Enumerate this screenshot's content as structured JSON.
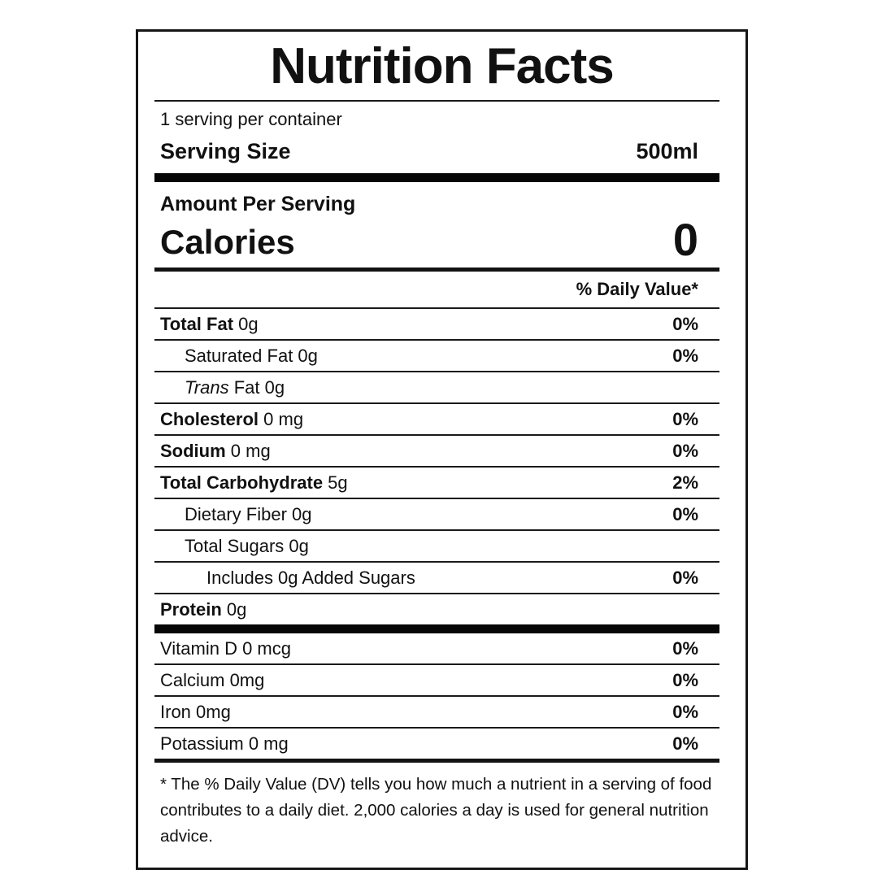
{
  "label": {
    "title": "Nutrition Facts",
    "servings_per_container": "1 serving per container",
    "serving_size": {
      "label": "Serving Size",
      "value": "500ml"
    },
    "amount_per_serving": "Amount Per Serving",
    "calories": {
      "label": "Calories",
      "value": "0"
    },
    "daily_value_header": "% Daily Value*",
    "nutrients": [
      {
        "bold": "Total Fat",
        "italic": "",
        "rest": " 0g",
        "dv": "0%"
      },
      {
        "bold": "",
        "italic": "",
        "rest": "Saturated Fat 0g",
        "dv": "0%"
      },
      {
        "bold": "",
        "italic": "Trans",
        "rest": " Fat 0g",
        "dv": ""
      },
      {
        "bold": "Cholesterol",
        "italic": "",
        "rest": " 0 mg",
        "dv": "0%"
      },
      {
        "bold": "Sodium",
        "italic": "",
        "rest": " 0 mg",
        "dv": "0%"
      },
      {
        "bold": "Total Carbohydrate",
        "italic": "",
        "rest": " 5g",
        "dv": "2%"
      },
      {
        "bold": "",
        "italic": "",
        "rest": "Dietary Fiber 0g",
        "dv": "0%"
      },
      {
        "bold": "",
        "italic": "",
        "rest": "Total Sugars 0g",
        "dv": ""
      },
      {
        "bold": "",
        "italic": "",
        "rest": "Includes 0g Added Sugars",
        "dv": "0%"
      },
      {
        "bold": "Protein",
        "italic": "",
        "rest": " 0g",
        "dv": ""
      }
    ],
    "vitamins": [
      {
        "name": "Vitamin D 0 mcg",
        "dv": "0%"
      },
      {
        "name": "Calcium 0mg",
        "dv": "0%"
      },
      {
        "name": "Iron 0mg",
        "dv": "0%"
      },
      {
        "name": "Potassium 0 mg",
        "dv": "0%"
      }
    ],
    "footnote_line1": "* The % Daily Value (DV) tells you how much a nutrient in a serving of food",
    "footnote_line2": "contributes to a daily diet. 2,000 calories a day is used for general nutrition advice."
  }
}
